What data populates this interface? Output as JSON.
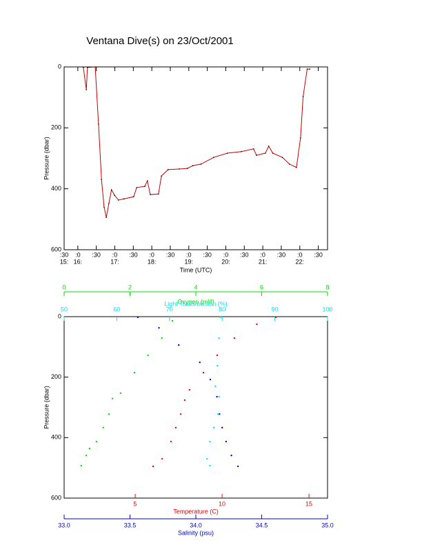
{
  "chart_data": [
    {
      "type": "line",
      "title": "Ventana Dive(s) on 23/Oct/2001",
      "xlabel": "Time (UTC)",
      "ylabel": "Pressure (dbar)",
      "color": "#c00000",
      "marker_color": "#000000",
      "ylim": [
        0,
        600
      ],
      "yticks": [
        0,
        200,
        400,
        600
      ],
      "xlim": [
        15.63,
        22.75
      ],
      "xticks": [
        {
          "value": 15.63,
          "label": ":30"
        },
        {
          "value": 16,
          "label": ":0"
        },
        {
          "value": 16.5,
          "label": ":30"
        },
        {
          "value": 17,
          "label": ":0"
        },
        {
          "value": 17.5,
          "label": ":30"
        },
        {
          "value": 18,
          "label": ":0"
        },
        {
          "value": 18.5,
          "label": ":30"
        },
        {
          "value": 19,
          "label": ":0"
        },
        {
          "value": 19.5,
          "label": ":30"
        },
        {
          "value": 20,
          "label": ":0"
        },
        {
          "value": 20.5,
          "label": ":30"
        },
        {
          "value": 21,
          "label": ":0"
        },
        {
          "value": 21.5,
          "label": ":30"
        },
        {
          "value": 22,
          "label": ":0"
        },
        {
          "value": 22.5,
          "label": ":30"
        }
      ],
      "xtick_hours": [
        {
          "value": 15.63,
          "label": "15:"
        },
        {
          "value": 16,
          "label": "16:"
        },
        {
          "value": 17,
          "label": "17:"
        },
        {
          "value": 18,
          "label": "18:"
        },
        {
          "value": 19,
          "label": "19:"
        },
        {
          "value": 20,
          "label": "20:"
        },
        {
          "value": 21,
          "label": "21:"
        },
        {
          "value": 22,
          "label": "22:"
        }
      ],
      "x": [
        16.15,
        16.23,
        16.26,
        16.47,
        16.56,
        16.64,
        16.71,
        16.77,
        16.84,
        16.91,
        16.99,
        17.1,
        17.25,
        17.51,
        17.59,
        17.81,
        17.88,
        17.96,
        18.18,
        18.26,
        18.44,
        18.74,
        18.96,
        19.11,
        19.33,
        19.67,
        20.04,
        20.42,
        20.75,
        20.83,
        21.07,
        21.16,
        21.27,
        21.53,
        21.72,
        21.91,
        22.02,
        22.09,
        22.2,
        22.27
      ],
      "y": [
        2,
        75,
        2,
        0,
        188,
        369,
        460,
        494,
        448,
        403,
        421,
        437,
        433,
        426,
        396,
        392,
        374,
        419,
        417,
        358,
        337,
        335,
        333,
        324,
        319,
        297,
        283,
        278,
        269,
        290,
        283,
        260,
        283,
        297,
        319,
        330,
        233,
        97,
        7,
        7
      ]
    },
    {
      "type": "scatter",
      "ylabel": "Pressure (dbar)",
      "ylim": [
        0,
        600
      ],
      "yticks": [
        0,
        200,
        400,
        600
      ],
      "series": [
        {
          "xlabel": "Oxygen (ml/l)",
          "color": "#00dd00",
          "xlim": [
            0,
            8
          ],
          "xticks": [
            0,
            2,
            4,
            6,
            8
          ],
          "x": [
            3.29,
            2.97,
            2.55,
            2.14,
            1.72,
            1.47,
            1.36,
            1.19,
            0.98,
            0.77,
            0.67,
            0.52
          ],
          "y": [
            14,
            71,
            128,
            185,
            253,
            271,
            322,
            367,
            413,
            436,
            459,
            493
          ]
        },
        {
          "xlabel": "Light Transmission (%)",
          "color": "#00e5ee",
          "xlim": [
            50,
            100
          ],
          "xticks": [
            50,
            60,
            70,
            80,
            90,
            100
          ],
          "x": [
            79.7,
            79.4,
            79.1,
            78.7,
            79.4,
            79.2,
            78.4,
            77.7,
            77.1,
            77.7
          ],
          "y": [
            2,
            71,
            162,
            230,
            265,
            322,
            367,
            413,
            470,
            493
          ]
        },
        {
          "xlabel": "Temperature (C)",
          "color": "#ee0000",
          "xlim": [
            0.91,
            16.07
          ],
          "xticks": [
            5,
            10,
            15
          ],
          "x": [
            13.09,
            12.0,
            10.71,
            9.72,
            8.93,
            8.13,
            7.85,
            7.62,
            7.34,
            7.06,
            6.55,
            6.03
          ],
          "y": [
            2,
            25,
            71,
            128,
            185,
            242,
            276,
            322,
            367,
            413,
            470,
            495
          ]
        },
        {
          "xlabel": "Salinity (psu)",
          "color": "#0000cc",
          "xlim": [
            33,
            35
          ],
          "xticks": [
            {
              "value": 33,
              "label": "33.0"
            },
            33.5,
            {
              "value": 34,
              "label": "34.0"
            },
            34.5,
            {
              "value": 35,
              "label": "35.0"
            }
          ],
          "x": [
            33.56,
            33.72,
            33.87,
            34.03,
            34.11,
            34.16,
            34.18,
            34.2,
            34.23,
            34.27,
            34.32
          ],
          "y": [
            2,
            37,
            94,
            151,
            208,
            265,
            322,
            367,
            413,
            459,
            495
          ]
        }
      ]
    }
  ]
}
